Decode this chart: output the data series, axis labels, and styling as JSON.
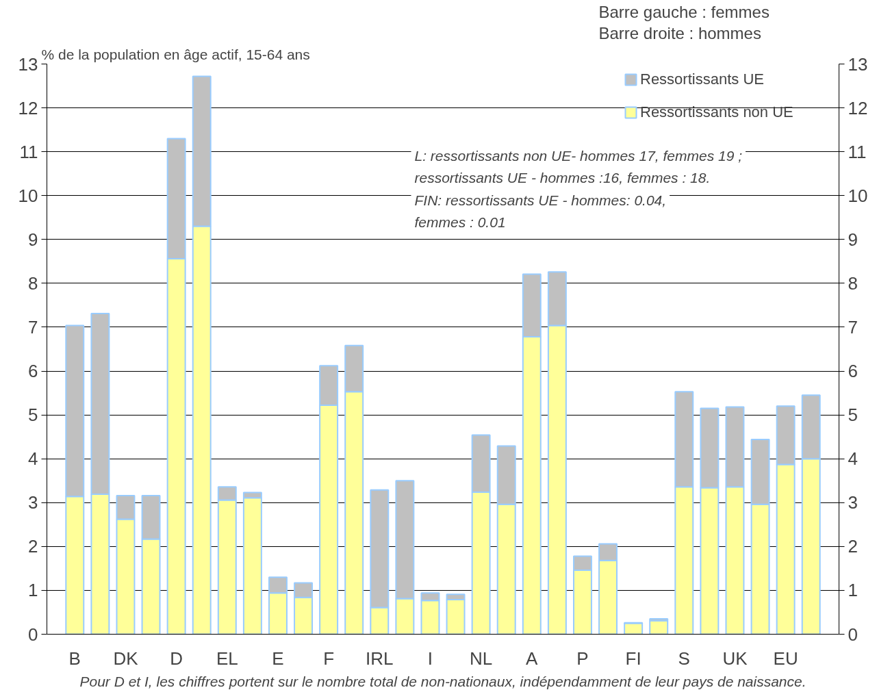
{
  "chart_data": {
    "type": "bar",
    "stacked": true,
    "ylabel": "% de la population en âge actif, 15-64 ans",
    "categories": [
      "B",
      null,
      "DK",
      null,
      "D",
      null,
      "EL",
      null,
      "E",
      null,
      "F",
      null,
      "IRL",
      null,
      "I",
      null,
      "NL",
      null,
      "A",
      null,
      "P",
      null,
      "FI",
      null,
      "S",
      null,
      "UK",
      null,
      "EU",
      null
    ],
    "series": [
      {
        "name": "Ressortissants non UE",
        "color": "#ffff99",
        "values": [
          3.14,
          3.19,
          2.62,
          2.17,
          8.56,
          9.3,
          3.06,
          3.11,
          0.94,
          0.84,
          5.22,
          5.53,
          0.61,
          0.81,
          0.77,
          0.79,
          3.24,
          2.96,
          6.78,
          7.04,
          1.46,
          1.68,
          0.25,
          0.31,
          3.36,
          3.34,
          3.36,
          2.96,
          3.87,
          4.0
        ]
      },
      {
        "name": "Ressortissants UE",
        "color": "#c0c0c0",
        "values": [
          3.9,
          4.12,
          0.54,
          0.99,
          2.74,
          3.42,
          0.3,
          0.12,
          0.36,
          0.33,
          0.9,
          1.05,
          2.68,
          2.69,
          0.17,
          0.12,
          1.3,
          1.33,
          1.43,
          1.22,
          0.32,
          0.38,
          0.01,
          0.04,
          2.17,
          1.81,
          1.82,
          1.48,
          1.33,
          1.45
        ]
      }
    ],
    "ylim": [
      0,
      13
    ],
    "yticks": [
      0,
      1,
      2,
      3,
      4,
      5,
      6,
      7,
      8,
      9,
      10,
      11,
      12,
      13
    ],
    "y2lim": [
      0,
      13
    ],
    "y2ticks": [
      0,
      1,
      2,
      3,
      4,
      5,
      6,
      7,
      8,
      9,
      10,
      11,
      12,
      13
    ],
    "grid": "y",
    "legend": "top right",
    "annotations": [
      "Barre gauche : femmes",
      "Barre droite : hommes",
      "L: ressortissants non UE- hommes 17, femmes 19 ;",
      "ressortissants UE - hommes :16, femmes : 18.",
      "FIN: ressortissants UE - hommes: 0.04,",
      "femmes :  0.01",
      "Pour D et I, les chiffres portent sur le nombre total de non-nationaux, indépendamment de leur pays de naissance."
    ]
  }
}
